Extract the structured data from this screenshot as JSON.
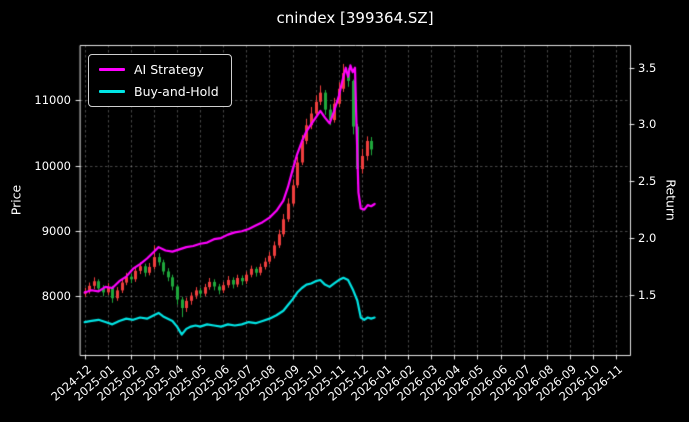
{
  "title": "cnindex [399364.SZ]",
  "axes": {
    "y_left_label": "Price",
    "y_right_label": "Return"
  },
  "legend": {
    "items": [
      {
        "label": "AI Strategy",
        "color": "#ff00ff"
      },
      {
        "label": "Buy-and-Hold",
        "color": "#00e5e5"
      }
    ]
  },
  "chart_data": {
    "type": "candlestick+line",
    "title": "cnindex [399364.SZ]",
    "x_unit": "months since 2024-12",
    "xlim": [
      -0.2,
      23.6
    ],
    "x_tick_labels": [
      "2024-12",
      "2025-01",
      "2025-02",
      "2025-03",
      "2025-04",
      "2025-05",
      "2025-06",
      "2025-07",
      "2025-08",
      "2025-09",
      "2025-10",
      "2025-11",
      "2025-12",
      "2026-01",
      "2026-02",
      "2026-03",
      "2026-04",
      "2026-05",
      "2026-06",
      "2026-07",
      "2026-08",
      "2026-09",
      "2026-10",
      "2026-11"
    ],
    "grid": true,
    "legend_position": "upper left",
    "price_axis": {
      "label": "Price",
      "ticks": [
        8000,
        9000,
        10000,
        11000
      ],
      "lim": [
        7100,
        11850
      ]
    },
    "return_axis": {
      "label": "Return",
      "ticks": [
        1.5,
        2.0,
        2.5,
        3.0,
        3.5
      ],
      "lim": [
        0.97,
        3.7
      ]
    },
    "candle_colors": {
      "up": "#ef3e3e",
      "down": "#1fa83c"
    },
    "candles": {
      "start": 0,
      "step": 0.2,
      "ohlc": [
        [
          8040,
          8130,
          7990,
          8080
        ],
        [
          8080,
          8210,
          8040,
          8160
        ],
        [
          8160,
          8290,
          8110,
          8230
        ],
        [
          8230,
          8260,
          8070,
          8120
        ],
        [
          8120,
          8170,
          8000,
          8060
        ],
        [
          8060,
          8200,
          8020,
          8140
        ],
        [
          8140,
          8160,
          7900,
          7970
        ],
        [
          7970,
          8140,
          7930,
          8090
        ],
        [
          8090,
          8260,
          8050,
          8210
        ],
        [
          8210,
          8360,
          8170,
          8300
        ],
        [
          8300,
          8350,
          8200,
          8260
        ],
        [
          8260,
          8440,
          8220,
          8390
        ],
        [
          8390,
          8520,
          8340,
          8460
        ],
        [
          8460,
          8500,
          8300,
          8360
        ],
        [
          8360,
          8510,
          8320,
          8450
        ],
        [
          8450,
          8780,
          8410,
          8600
        ],
        [
          8600,
          8660,
          8470,
          8520
        ],
        [
          8520,
          8560,
          8330,
          8380
        ],
        [
          8380,
          8430,
          8230,
          8290
        ],
        [
          8290,
          8330,
          8090,
          8150
        ],
        [
          8150,
          8180,
          7870,
          7950
        ],
        [
          7950,
          7990,
          7680,
          7820
        ],
        [
          7820,
          7980,
          7760,
          7930
        ],
        [
          7930,
          8060,
          7870,
          8010
        ],
        [
          8010,
          8140,
          7960,
          8090
        ],
        [
          8090,
          8130,
          7980,
          8040
        ],
        [
          8040,
          8190,
          8000,
          8140
        ],
        [
          8140,
          8280,
          8100,
          8220
        ],
        [
          8220,
          8260,
          8090,
          8150
        ],
        [
          8150,
          8190,
          8030,
          8090
        ],
        [
          8090,
          8220,
          8050,
          8170
        ],
        [
          8170,
          8310,
          8130,
          8250
        ],
        [
          8250,
          8290,
          8120,
          8180
        ],
        [
          8180,
          8330,
          8140,
          8280
        ],
        [
          8280,
          8320,
          8170,
          8230
        ],
        [
          8230,
          8380,
          8190,
          8330
        ],
        [
          8330,
          8470,
          8290,
          8420
        ],
        [
          8420,
          8450,
          8300,
          8360
        ],
        [
          8360,
          8500,
          8320,
          8450
        ],
        [
          8450,
          8590,
          8410,
          8530
        ],
        [
          8530,
          8680,
          8490,
          8620
        ],
        [
          8620,
          8840,
          8580,
          8780
        ],
        [
          8780,
          9020,
          8740,
          8950
        ],
        [
          8950,
          9260,
          8910,
          9180
        ],
        [
          9180,
          9500,
          9140,
          9420
        ],
        [
          9420,
          9790,
          9380,
          9700
        ],
        [
          9700,
          10140,
          9660,
          10050
        ],
        [
          10050,
          10470,
          10010,
          10380
        ],
        [
          10380,
          10720,
          10330,
          10620
        ],
        [
          10620,
          10900,
          10560,
          10800
        ],
        [
          10800,
          11080,
          10740,
          10980
        ],
        [
          10980,
          11230,
          10930,
          11120
        ],
        [
          11120,
          11160,
          10780,
          10860
        ],
        [
          10860,
          10940,
          10620,
          10700
        ],
        [
          10700,
          11040,
          10660,
          10950
        ],
        [
          10950,
          11280,
          10900,
          11180
        ],
        [
          11180,
          11560,
          11130,
          11420
        ],
        [
          11420,
          11500,
          11210,
          11300
        ],
        [
          11300,
          11320,
          10480,
          10600
        ],
        [
          10600,
          10640,
          9720,
          9950
        ],
        [
          9950,
          10260,
          9880,
          10150
        ],
        [
          10150,
          10450,
          10080,
          10380
        ],
        [
          10380,
          10440,
          10160,
          10250
        ]
      ]
    },
    "series": [
      {
        "name": "AI Strategy",
        "axis": "return",
        "color": "#ff00ff",
        "points": [
          [
            0,
            1.52
          ],
          [
            0.3,
            1.54
          ],
          [
            0.6,
            1.53
          ],
          [
            0.9,
            1.57
          ],
          [
            1.2,
            1.56
          ],
          [
            1.5,
            1.62
          ],
          [
            1.8,
            1.66
          ],
          [
            2.1,
            1.73
          ],
          [
            2.4,
            1.77
          ],
          [
            2.7,
            1.82
          ],
          [
            3.0,
            1.88
          ],
          [
            3.2,
            1.92
          ],
          [
            3.5,
            1.89
          ],
          [
            3.8,
            1.88
          ],
          [
            4.1,
            1.9
          ],
          [
            4.4,
            1.92
          ],
          [
            4.7,
            1.93
          ],
          [
            5.0,
            1.95
          ],
          [
            5.3,
            1.96
          ],
          [
            5.6,
            1.99
          ],
          [
            5.9,
            2.0
          ],
          [
            6.2,
            2.03
          ],
          [
            6.5,
            2.05
          ],
          [
            6.8,
            2.06
          ],
          [
            7.1,
            2.08
          ],
          [
            7.4,
            2.11
          ],
          [
            7.7,
            2.14
          ],
          [
            8.0,
            2.18
          ],
          [
            8.3,
            2.24
          ],
          [
            8.6,
            2.33
          ],
          [
            8.8,
            2.45
          ],
          [
            9.0,
            2.6
          ],
          [
            9.2,
            2.74
          ],
          [
            9.4,
            2.85
          ],
          [
            9.6,
            2.94
          ],
          [
            9.8,
            3.0
          ],
          [
            10.0,
            3.06
          ],
          [
            10.2,
            3.12
          ],
          [
            10.4,
            3.06
          ],
          [
            10.6,
            3.01
          ],
          [
            10.8,
            3.12
          ],
          [
            11.0,
            3.25
          ],
          [
            11.15,
            3.38
          ],
          [
            11.3,
            3.5
          ],
          [
            11.4,
            3.42
          ],
          [
            11.5,
            3.52
          ],
          [
            11.6,
            3.46
          ],
          [
            11.7,
            3.5
          ],
          [
            11.75,
            3.1
          ],
          [
            11.85,
            2.4
          ],
          [
            11.95,
            2.26
          ],
          [
            12.1,
            2.25
          ],
          [
            12.25,
            2.29
          ],
          [
            12.4,
            2.28
          ],
          [
            12.55,
            2.3
          ]
        ]
      },
      {
        "name": "Buy-and-Hold",
        "axis": "return",
        "color": "#00e5e5",
        "points": [
          [
            0,
            1.26
          ],
          [
            0.3,
            1.27
          ],
          [
            0.6,
            1.28
          ],
          [
            0.9,
            1.26
          ],
          [
            1.2,
            1.24
          ],
          [
            1.5,
            1.27
          ],
          [
            1.8,
            1.29
          ],
          [
            2.1,
            1.28
          ],
          [
            2.4,
            1.3
          ],
          [
            2.7,
            1.29
          ],
          [
            3.0,
            1.32
          ],
          [
            3.2,
            1.34
          ],
          [
            3.4,
            1.31
          ],
          [
            3.6,
            1.29
          ],
          [
            3.8,
            1.27
          ],
          [
            4.0,
            1.22
          ],
          [
            4.2,
            1.15
          ],
          [
            4.4,
            1.2
          ],
          [
            4.6,
            1.22
          ],
          [
            4.8,
            1.23
          ],
          [
            5.0,
            1.22
          ],
          [
            5.3,
            1.24
          ],
          [
            5.6,
            1.23
          ],
          [
            5.9,
            1.22
          ],
          [
            6.2,
            1.24
          ],
          [
            6.5,
            1.23
          ],
          [
            6.8,
            1.24
          ],
          [
            7.1,
            1.26
          ],
          [
            7.4,
            1.25
          ],
          [
            7.7,
            1.27
          ],
          [
            8.0,
            1.29
          ],
          [
            8.3,
            1.32
          ],
          [
            8.6,
            1.36
          ],
          [
            8.8,
            1.41
          ],
          [
            9.0,
            1.46
          ],
          [
            9.2,
            1.52
          ],
          [
            9.4,
            1.56
          ],
          [
            9.6,
            1.59
          ],
          [
            9.8,
            1.6
          ],
          [
            10.0,
            1.62
          ],
          [
            10.2,
            1.63
          ],
          [
            10.4,
            1.59
          ],
          [
            10.6,
            1.57
          ],
          [
            10.8,
            1.6
          ],
          [
            11.0,
            1.63
          ],
          [
            11.2,
            1.65
          ],
          [
            11.4,
            1.63
          ],
          [
            11.6,
            1.55
          ],
          [
            11.8,
            1.45
          ],
          [
            11.95,
            1.3
          ],
          [
            12.1,
            1.28
          ],
          [
            12.25,
            1.3
          ],
          [
            12.4,
            1.29
          ],
          [
            12.55,
            1.3
          ]
        ]
      }
    ]
  }
}
